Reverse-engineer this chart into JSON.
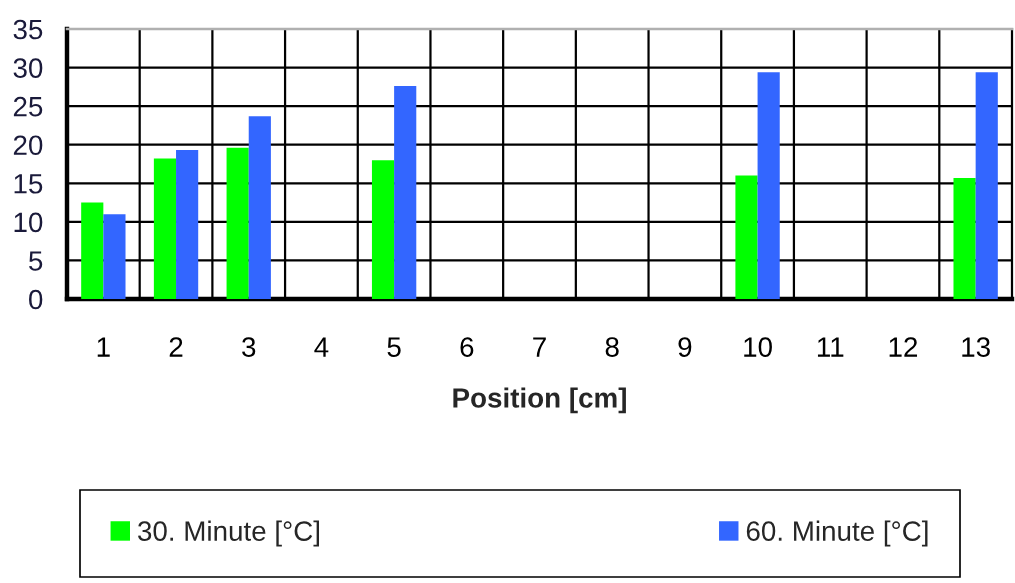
{
  "chart_data": {
    "type": "bar",
    "xlabel": "Position [cm]",
    "categories": [
      "1",
      "2",
      "3",
      "4",
      "5",
      "6",
      "7",
      "8",
      "9",
      "10",
      "11",
      "12",
      "13"
    ],
    "series": [
      {
        "name": "30. Minute [°C]",
        "color": "#00ff00",
        "values": [
          12.5,
          18.2,
          19.6,
          null,
          18.0,
          null,
          null,
          null,
          null,
          16.0,
          null,
          null,
          15.7
        ]
      },
      {
        "name": "60. Minute [°C]",
        "color": "#3366ff",
        "values": [
          11.0,
          19.3,
          23.7,
          null,
          27.6,
          null,
          null,
          null,
          null,
          29.4,
          null,
          null,
          29.4
        ]
      }
    ],
    "ylim": [
      0,
      35
    ],
    "yticks": [
      0,
      5,
      10,
      15,
      20,
      25,
      30,
      35
    ],
    "grid": true,
    "legend": "bottom"
  }
}
